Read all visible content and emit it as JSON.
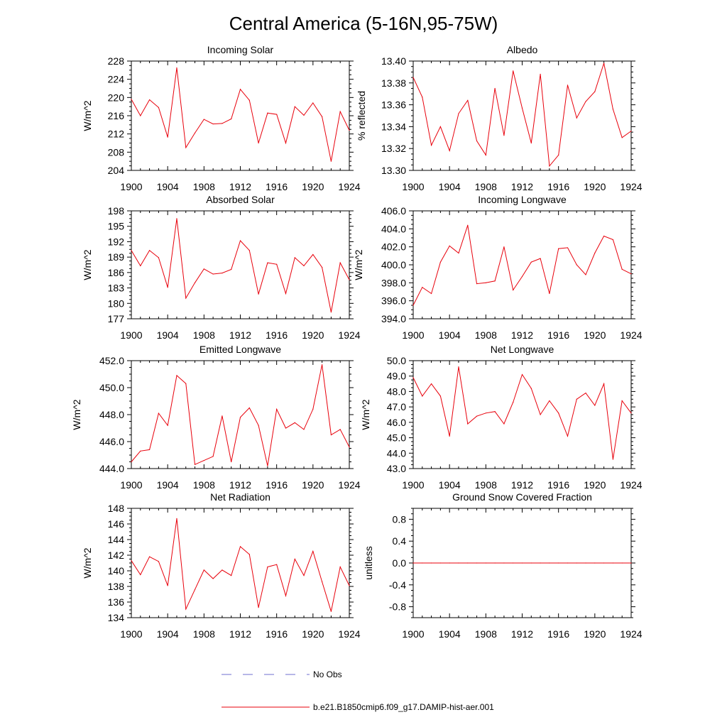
{
  "figure": {
    "title": "Central America (5-16N,95-75W)"
  },
  "chart_data": [
    {
      "type": "line",
      "title": "Incoming Solar",
      "xlabel": "",
      "ylabel": "W/m^2",
      "xlim": [
        1900,
        1924
      ],
      "ylim": [
        204,
        228
      ],
      "x_ticks": [
        1900,
        1904,
        1908,
        1912,
        1916,
        1920,
        1924
      ],
      "y_ticks": [
        204,
        208,
        212,
        216,
        220,
        224,
        228
      ],
      "y_tick_labels": [
        "204",
        "208",
        "212",
        "216",
        "220",
        "224",
        "228"
      ],
      "x": [
        1900,
        1901,
        1902,
        1903,
        1904,
        1905,
        1906,
        1907,
        1908,
        1909,
        1910,
        1911,
        1912,
        1913,
        1914,
        1915,
        1916,
        1917,
        1918,
        1919,
        1920,
        1921,
        1922,
        1923,
        1924
      ],
      "series": [
        {
          "values": [
            219.6,
            216.0,
            219.5,
            217.8,
            211.3,
            226.5,
            209.0,
            212.2,
            215.2,
            214.2,
            214.3,
            215.3,
            221.8,
            219.4,
            210.0,
            216.6,
            216.3,
            210.0,
            218.0,
            216.1,
            218.8,
            215.8,
            206.0,
            216.9,
            212.8
          ]
        }
      ]
    },
    {
      "type": "line",
      "title": "Albedo",
      "xlabel": "",
      "ylabel": "% reflected",
      "xlim": [
        1900,
        1924
      ],
      "ylim": [
        13.3,
        13.4
      ],
      "x_ticks": [
        1900,
        1904,
        1908,
        1912,
        1916,
        1920,
        1924
      ],
      "y_ticks": [
        13.3,
        13.32,
        13.34,
        13.36,
        13.38,
        13.4
      ],
      "y_tick_labels": [
        "13.30",
        "13.32",
        "13.34",
        "13.36",
        "13.38",
        "13.40"
      ],
      "x": [
        1900,
        1901,
        1902,
        1903,
        1904,
        1905,
        1906,
        1907,
        1908,
        1909,
        1910,
        1911,
        1912,
        1913,
        1914,
        1915,
        1916,
        1917,
        1918,
        1919,
        1920,
        1921,
        1922,
        1923,
        1924
      ],
      "series": [
        {
          "values": [
            13.385,
            13.367,
            13.323,
            13.34,
            13.318,
            13.352,
            13.364,
            13.327,
            13.314,
            13.375,
            13.332,
            13.391,
            13.357,
            13.325,
            13.388,
            13.304,
            13.314,
            13.378,
            13.348,
            13.363,
            13.372,
            13.398,
            13.356,
            13.33,
            13.336
          ]
        }
      ]
    },
    {
      "type": "line",
      "title": "Absorbed Solar",
      "xlabel": "",
      "ylabel": "W/m^2",
      "xlim": [
        1900,
        1924
      ],
      "ylim": [
        177,
        198
      ],
      "x_ticks": [
        1900,
        1904,
        1908,
        1912,
        1916,
        1920,
        1924
      ],
      "y_ticks": [
        177,
        180,
        183,
        186,
        189,
        192,
        195,
        198
      ],
      "y_tick_labels": [
        "177",
        "180",
        "183",
        "186",
        "189",
        "192",
        "195",
        "198"
      ],
      "x": [
        1900,
        1901,
        1902,
        1903,
        1904,
        1905,
        1906,
        1907,
        1908,
        1909,
        1910,
        1911,
        1912,
        1913,
        1914,
        1915,
        1916,
        1917,
        1918,
        1919,
        1920,
        1921,
        1922,
        1923,
        1924
      ],
      "series": [
        {
          "values": [
            190.3,
            187.3,
            190.3,
            188.9,
            183.1,
            196.5,
            181.0,
            184.0,
            186.7,
            185.7,
            185.9,
            186.6,
            192.2,
            190.3,
            181.8,
            187.9,
            187.6,
            181.9,
            188.9,
            187.3,
            189.5,
            187.0,
            178.3,
            187.9,
            184.6
          ]
        }
      ]
    },
    {
      "type": "line",
      "title": "Incoming Longwave",
      "xlabel": "",
      "ylabel": "W/m^2",
      "xlim": [
        1900,
        1924
      ],
      "ylim": [
        394.0,
        406.0
      ],
      "x_ticks": [
        1900,
        1904,
        1908,
        1912,
        1916,
        1920,
        1924
      ],
      "y_ticks": [
        394.0,
        396.0,
        398.0,
        400.0,
        402.0,
        404.0,
        406.0
      ],
      "y_tick_labels": [
        "394.0",
        "396.0",
        "398.0",
        "400.0",
        "402.0",
        "404.0",
        "406.0"
      ],
      "x": [
        1900,
        1901,
        1902,
        1903,
        1904,
        1905,
        1906,
        1907,
        1908,
        1909,
        1910,
        1911,
        1912,
        1913,
        1914,
        1915,
        1916,
        1917,
        1918,
        1919,
        1920,
        1921,
        1922,
        1923,
        1924
      ],
      "series": [
        {
          "values": [
            395.5,
            397.5,
            396.8,
            400.3,
            402.1,
            401.3,
            404.4,
            397.9,
            398.0,
            398.2,
            402.0,
            397.2,
            398.7,
            400.3,
            400.7,
            396.8,
            401.8,
            401.9,
            400.0,
            398.9,
            401.3,
            403.2,
            402.8,
            399.5,
            399.0
          ]
        }
      ]
    },
    {
      "type": "line",
      "title": "Emitted Longwave",
      "xlabel": "",
      "ylabel": "W/m^2",
      "xlim": [
        1900,
        1924
      ],
      "ylim": [
        444.0,
        452.0
      ],
      "x_ticks": [
        1900,
        1904,
        1908,
        1912,
        1916,
        1920,
        1924
      ],
      "y_ticks": [
        444.0,
        446.0,
        448.0,
        450.0,
        452.0
      ],
      "y_tick_labels": [
        "444.0",
        "446.0",
        "448.0",
        "450.0",
        "452.0"
      ],
      "x": [
        1900,
        1901,
        1902,
        1903,
        1904,
        1905,
        1906,
        1907,
        1908,
        1909,
        1910,
        1911,
        1912,
        1913,
        1914,
        1915,
        1916,
        1917,
        1918,
        1919,
        1920,
        1921,
        1922,
        1923,
        1924
      ],
      "series": [
        {
          "values": [
            444.5,
            445.3,
            445.4,
            448.1,
            447.2,
            450.9,
            450.3,
            444.3,
            444.6,
            444.9,
            447.9,
            444.5,
            447.8,
            448.5,
            447.2,
            444.2,
            448.4,
            447.0,
            447.4,
            446.9,
            448.4,
            451.7,
            446.5,
            446.9,
            445.6
          ]
        }
      ]
    },
    {
      "type": "line",
      "title": "Net Longwave",
      "xlabel": "",
      "ylabel": "W/m^2",
      "xlim": [
        1900,
        1924
      ],
      "ylim": [
        43.0,
        50.0
      ],
      "x_ticks": [
        1900,
        1904,
        1908,
        1912,
        1916,
        1920,
        1924
      ],
      "y_ticks": [
        43.0,
        44.0,
        45.0,
        46.0,
        47.0,
        48.0,
        49.0,
        50.0
      ],
      "y_tick_labels": [
        "43.0",
        "44.0",
        "45.0",
        "46.0",
        "47.0",
        "48.0",
        "49.0",
        "50.0"
      ],
      "x": [
        1900,
        1901,
        1902,
        1903,
        1904,
        1905,
        1906,
        1907,
        1908,
        1909,
        1910,
        1911,
        1912,
        1913,
        1914,
        1915,
        1916,
        1917,
        1918,
        1919,
        1920,
        1921,
        1922,
        1923,
        1924
      ],
      "series": [
        {
          "values": [
            48.9,
            47.7,
            48.5,
            47.7,
            45.1,
            49.6,
            45.9,
            46.4,
            46.6,
            46.7,
            45.9,
            47.3,
            49.1,
            48.2,
            46.5,
            47.4,
            46.6,
            45.1,
            47.5,
            47.9,
            47.1,
            48.5,
            43.6,
            47.4,
            46.6
          ]
        }
      ]
    },
    {
      "type": "line",
      "title": "Net Radiation",
      "xlabel": "",
      "ylabel": "W/m^2",
      "xlim": [
        1900,
        1924
      ],
      "ylim": [
        134,
        148
      ],
      "x_ticks": [
        1900,
        1904,
        1908,
        1912,
        1916,
        1920,
        1924
      ],
      "y_ticks": [
        134,
        136,
        138,
        140,
        142,
        144,
        146,
        148
      ],
      "y_tick_labels": [
        "134",
        "136",
        "138",
        "140",
        "142",
        "144",
        "146",
        "148"
      ],
      "x": [
        1900,
        1901,
        1902,
        1903,
        1904,
        1905,
        1906,
        1907,
        1908,
        1909,
        1910,
        1911,
        1912,
        1913,
        1914,
        1915,
        1916,
        1917,
        1918,
        1919,
        1920,
        1921,
        1922,
        1923,
        1924
      ],
      "series": [
        {
          "values": [
            141.3,
            139.5,
            141.8,
            141.2,
            138.1,
            146.7,
            135.1,
            137.6,
            140.1,
            139.0,
            140.1,
            139.4,
            143.1,
            142.1,
            135.3,
            140.5,
            140.8,
            136.8,
            141.5,
            139.4,
            142.5,
            138.6,
            134.8,
            140.5,
            138.1
          ]
        }
      ]
    },
    {
      "type": "line",
      "title": "Ground Snow Covered Fraction",
      "xlabel": "",
      "ylabel": "unitless",
      "xlim": [
        1900,
        1924
      ],
      "ylim": [
        -1.0,
        1.0
      ],
      "x_ticks": [
        1900,
        1904,
        1908,
        1912,
        1916,
        1920,
        1924
      ],
      "y_ticks": [
        -0.8,
        -0.4,
        0.0,
        0.4,
        0.8
      ],
      "y_tick_labels": [
        "-0.8",
        "-0.4",
        "0.0",
        "0.4",
        "0.8"
      ],
      "x": [
        1900,
        1901,
        1902,
        1903,
        1904,
        1905,
        1906,
        1907,
        1908,
        1909,
        1910,
        1911,
        1912,
        1913,
        1914,
        1915,
        1916,
        1917,
        1918,
        1919,
        1920,
        1921,
        1922,
        1923,
        1924
      ],
      "series": [
        {
          "values": [
            0,
            0,
            0,
            0,
            0,
            0,
            0,
            0,
            0,
            0,
            0,
            0,
            0,
            0,
            0,
            0,
            0,
            0,
            0,
            0,
            0,
            0,
            0,
            0,
            0
          ]
        }
      ]
    }
  ],
  "legend": {
    "entries": [
      {
        "label": "No Obs",
        "color": "#6f6fd0",
        "style": "dashed"
      },
      {
        "label": "b.e21.B1850cmip6.f09_g17.DAMIP-hist-aer.001",
        "color": "#e8000b",
        "style": "solid"
      }
    ]
  },
  "colors": {
    "series": "#e8000b",
    "no_obs": "#6f6fd0",
    "axes": "#000000"
  }
}
